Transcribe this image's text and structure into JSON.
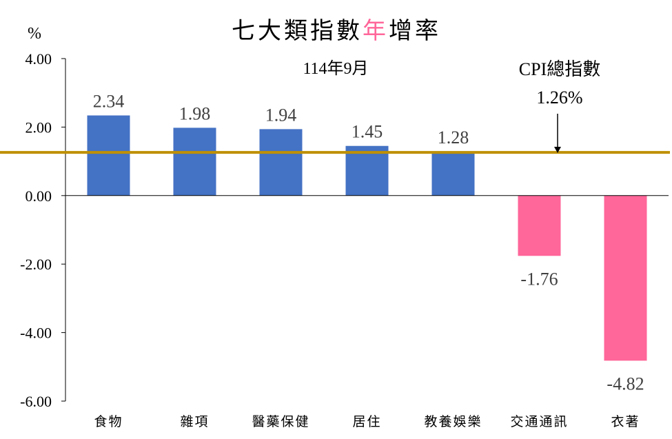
{
  "chart_data": {
    "type": "bar",
    "title_parts": [
      {
        "text": "七大類指數",
        "color": "#000000"
      },
      {
        "text": "年",
        "color": "#ff6699"
      },
      {
        "text": "增率",
        "color": "#000000"
      }
    ],
    "subtitle": "114年9月",
    "ylabel": "%",
    "ylim": [
      -6,
      4
    ],
    "yticks": [
      4,
      2,
      0,
      -2,
      -4,
      -6
    ],
    "ytick_labels": [
      "4.00",
      "2.00",
      "0.00",
      "-2.00",
      "-4.00",
      "-6.00"
    ],
    "categories": [
      "食物",
      "雜項",
      "醫藥保健",
      "居住",
      "教養娛樂",
      "交通通訊",
      "衣著"
    ],
    "values": [
      2.34,
      1.98,
      1.94,
      1.45,
      1.28,
      -1.76,
      -4.82
    ],
    "value_labels": [
      "2.34",
      "1.98",
      "1.94",
      "1.45",
      "1.28",
      "-1.76",
      "-4.82"
    ],
    "colors": {
      "positive": "#4472c4",
      "negative": "#ff6699",
      "reference_line": "#bf9000"
    },
    "reference_line": {
      "value": 1.26,
      "label": "CPI總指數",
      "value_label": "1.26%"
    },
    "grid": false
  }
}
